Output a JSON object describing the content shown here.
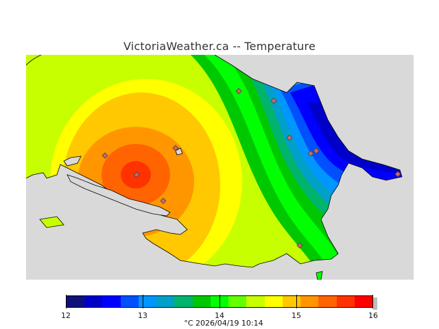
{
  "title": "VictoriaWeather.ca -- Temperature",
  "colors": {
    "land_bg": "#d9d9d9",
    "coast": "#000000",
    "station_fill": "#cc6666",
    "station_stroke": "#444444"
  },
  "legend": {
    "colors": [
      "#10107a",
      "#0000c8",
      "#0000ff",
      "#0050ff",
      "#0096ff",
      "#00a0c8",
      "#00b46e",
      "#00c800",
      "#00ff00",
      "#64ff00",
      "#c8ff00",
      "#ffff00",
      "#ffc800",
      "#ff9600",
      "#ff6400",
      "#ff3200",
      "#ff0000"
    ],
    "ticks": [
      "12",
      "13",
      "14",
      "15",
      "16"
    ],
    "timestamp": "°C  2026/04/19 10:14"
  },
  "map": {
    "stations": 11,
    "center_value_approx": 15.9
  }
}
